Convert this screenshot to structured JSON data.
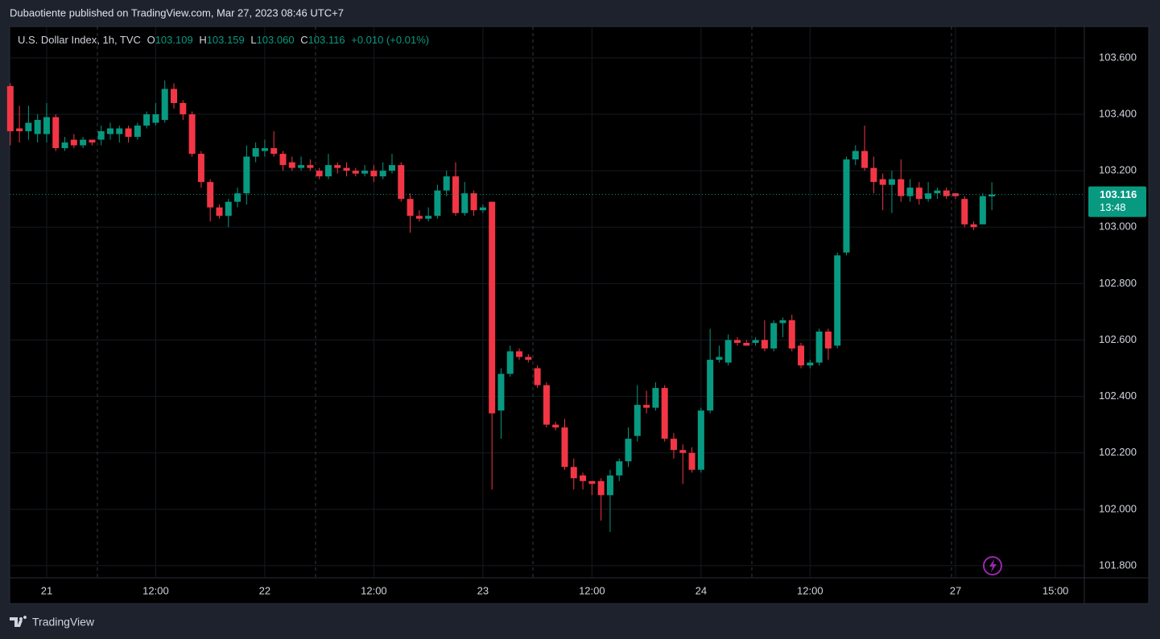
{
  "published": "Dubaotiente published on TradingView.com, Mar 27, 2023 08:46 UTC+7",
  "header": {
    "symbol": "U.S. Dollar Index, 1h, TVC",
    "open_label": "O",
    "open": "103.109",
    "high_label": "H",
    "high": "103.159",
    "low_label": "L",
    "low": "103.060",
    "close_label": "C",
    "close": "103.116",
    "change": "+0.010 (+0.01%)"
  },
  "brand": "TradingView",
  "chart_data": {
    "type": "candlestick",
    "categories": [
      null,
      null,
      null,
      null,
      "21",
      null,
      null,
      null,
      null,
      null,
      null,
      null,
      null,
      null,
      null,
      null,
      "12:00",
      null,
      null,
      null,
      null,
      null,
      null,
      null,
      null,
      null,
      null,
      null,
      "22",
      null,
      null,
      null,
      null,
      null,
      null,
      null,
      null,
      null,
      null,
      null,
      "12:00",
      null,
      null,
      null,
      null,
      null,
      null,
      null,
      null,
      null,
      null,
      null,
      "23",
      null,
      null,
      null,
      null,
      null,
      null,
      null,
      null,
      null,
      null,
      null,
      "12:00",
      null,
      null,
      null,
      null,
      null,
      null,
      null,
      null,
      null,
      null,
      null,
      "24",
      null,
      null,
      null,
      null,
      null,
      null,
      null,
      null,
      null,
      null,
      null,
      "12:00",
      null,
      null,
      null,
      null,
      null,
      null,
      null,
      null,
      null,
      null,
      null,
      null,
      null,
      null,
      null,
      "27",
      null,
      null,
      null,
      null,
      null,
      null,
      null,
      null,
      null,
      null,
      "15:00"
    ],
    "open": [
      103.5,
      103.35,
      103.34,
      103.33,
      103.33,
      103.39,
      103.28,
      103.31,
      103.29,
      103.31,
      103.31,
      103.33,
      103.33,
      103.35,
      103.32,
      103.36,
      103.37,
      103.38,
      103.49,
      103.44,
      103.4,
      103.26,
      103.16,
      103.07,
      103.04,
      103.09,
      103.12,
      103.25,
      103.27,
      103.28,
      103.26,
      103.23,
      103.21,
      103.22,
      103.2,
      103.18,
      103.22,
      103.21,
      103.2,
      103.19,
      103.2,
      103.18,
      103.2,
      103.22,
      103.1,
      103.04,
      103.03,
      103.04,
      103.13,
      103.18,
      103.05,
      103.12,
      103.06,
      103.09,
      102.35,
      102.48,
      102.56,
      102.54,
      102.5,
      102.44,
      102.3,
      102.29,
      102.15,
      102.12,
      102.1,
      102.1,
      102.05,
      102.12,
      102.17,
      102.26,
      102.37,
      102.36,
      102.43,
      102.25,
      102.21,
      102.2,
      102.14,
      102.35,
      102.53,
      102.52,
      102.6,
      102.59,
      102.59,
      102.6,
      102.57,
      102.66,
      102.67,
      102.58,
      102.51,
      102.52,
      102.63,
      102.58,
      102.91,
      103.24,
      103.27,
      103.21,
      103.17,
      103.15,
      103.17,
      103.11,
      103.14,
      103.1,
      103.12,
      103.13,
      103.12,
      103.1,
      103.01,
      103.01,
      103.109,
      null,
      null,
      null,
      null,
      null,
      null,
      null
    ],
    "high": [
      103.51,
      103.43,
      103.43,
      103.4,
      103.44,
      103.4,
      103.32,
      103.33,
      103.32,
      103.31,
      103.36,
      103.37,
      103.36,
      103.36,
      103.37,
      103.41,
      103.44,
      103.52,
      103.51,
      103.45,
      103.41,
      103.27,
      103.17,
      103.08,
      103.1,
      103.14,
      103.29,
      103.3,
      103.31,
      103.34,
      103.27,
      103.25,
      103.25,
      103.24,
      103.21,
      103.26,
      103.23,
      103.23,
      103.21,
      103.22,
      103.22,
      103.23,
      103.26,
      103.23,
      103.12,
      103.06,
      103.07,
      103.15,
      103.2,
      103.23,
      103.16,
      103.13,
      103.08,
      103.09,
      102.5,
      102.58,
      102.57,
      102.55,
      102.51,
      102.45,
      102.31,
      102.32,
      102.18,
      102.13,
      102.1,
      102.11,
      102.14,
      102.18,
      102.29,
      102.44,
      102.42,
      102.45,
      102.44,
      102.27,
      102.23,
      102.22,
      102.36,
      102.64,
      102.58,
      102.62,
      102.61,
      102.6,
      102.61,
      102.67,
      102.67,
      102.68,
      102.69,
      102.59,
      102.53,
      102.64,
      102.64,
      102.91,
      103.25,
      103.29,
      103.36,
      103.25,
      103.19,
      103.2,
      103.24,
      103.17,
      103.16,
      103.16,
      103.14,
      103.14,
      103.12,
      103.11,
      103.02,
      103.12,
      103.159,
      null,
      null,
      null,
      null,
      null,
      null,
      null
    ],
    "low": [
      103.29,
      103.3,
      103.31,
      103.3,
      103.3,
      103.27,
      103.27,
      103.28,
      103.28,
      103.29,
      103.29,
      103.31,
      103.3,
      103.3,
      103.31,
      103.35,
      103.36,
      103.37,
      103.42,
      103.38,
      103.25,
      103.14,
      103.02,
      103.03,
      103.0,
      103.07,
      103.08,
      103.23,
      103.25,
      103.25,
      103.2,
      103.2,
      103.2,
      103.2,
      103.17,
      103.17,
      103.19,
      103.18,
      103.18,
      103.18,
      103.16,
      103.17,
      103.19,
      103.09,
      102.98,
      103.02,
      103.02,
      103.03,
      103.11,
      103.04,
      103.04,
      103.04,
      103.05,
      102.07,
      102.25,
      102.47,
      102.53,
      102.52,
      102.43,
      102.29,
      102.28,
      102.14,
      102.07,
      102.07,
      102.05,
      101.96,
      101.92,
      102.1,
      102.15,
      102.24,
      102.34,
      102.35,
      102.24,
      102.18,
      102.09,
      102.13,
      102.13,
      102.34,
      102.52,
      102.51,
      102.58,
      102.58,
      102.58,
      102.56,
      102.56,
      102.61,
      102.56,
      102.5,
      102.5,
      102.51,
      102.53,
      102.57,
      102.9,
      103.22,
      103.2,
      103.12,
      103.06,
      103.05,
      103.09,
      103.09,
      103.08,
      103.09,
      103.1,
      103.1,
      103.1,
      103.0,
      102.99,
      103.01,
      103.06,
      null,
      null,
      null,
      null,
      null,
      null,
      null
    ],
    "close": [
      103.34,
      103.34,
      103.37,
      103.38,
      103.39,
      103.28,
      103.3,
      103.29,
      103.31,
      103.3,
      103.34,
      103.35,
      103.35,
      103.32,
      103.36,
      103.4,
      103.4,
      103.49,
      103.44,
      103.4,
      103.26,
      103.16,
      103.07,
      103.04,
      103.09,
      103.12,
      103.25,
      103.28,
      103.28,
      103.26,
      103.22,
      103.21,
      103.22,
      103.21,
      103.18,
      103.22,
      103.21,
      103.2,
      103.19,
      103.2,
      103.18,
      103.2,
      103.22,
      103.1,
      103.04,
      103.03,
      103.04,
      103.13,
      103.18,
      103.05,
      103.12,
      103.06,
      103.07,
      102.34,
      102.48,
      102.56,
      102.54,
      102.53,
      102.44,
      102.3,
      102.29,
      102.15,
      102.11,
      102.1,
      102.09,
      102.05,
      102.12,
      102.17,
      102.25,
      102.37,
      102.36,
      102.43,
      102.25,
      102.21,
      102.2,
      102.14,
      102.35,
      102.53,
      102.54,
      102.6,
      102.59,
      102.58,
      102.6,
      102.57,
      102.66,
      102.67,
      102.57,
      102.51,
      102.52,
      102.63,
      102.57,
      102.9,
      103.24,
      103.27,
      103.21,
      103.16,
      103.15,
      103.17,
      103.11,
      103.14,
      103.1,
      103.12,
      103.13,
      103.11,
      103.11,
      103.01,
      103.0,
      103.11,
      103.116,
      null,
      null,
      null,
      null,
      null,
      null,
      null
    ],
    "up_color": "#089981",
    "down_color": "#f23645",
    "ylim": [
      101.757,
      103.711
    ],
    "yticks": [
      {
        "value": 101.8,
        "label": "101.800"
      },
      {
        "value": 102.0,
        "label": "102.000"
      },
      {
        "value": 102.2,
        "label": "102.200"
      },
      {
        "value": 102.4,
        "label": "102.400"
      },
      {
        "value": 102.6,
        "label": "102.600"
      },
      {
        "value": 102.8,
        "label": "102.800"
      },
      {
        "value": 103.0,
        "label": "103.000"
      },
      {
        "value": 103.2,
        "label": "103.200"
      },
      {
        "value": 103.4,
        "label": "103.400"
      },
      {
        "value": 103.6,
        "label": "103.600"
      }
    ],
    "grid": true,
    "last_price": {
      "value": 103.116,
      "label": "103.116"
    },
    "countdown": "13:48"
  }
}
